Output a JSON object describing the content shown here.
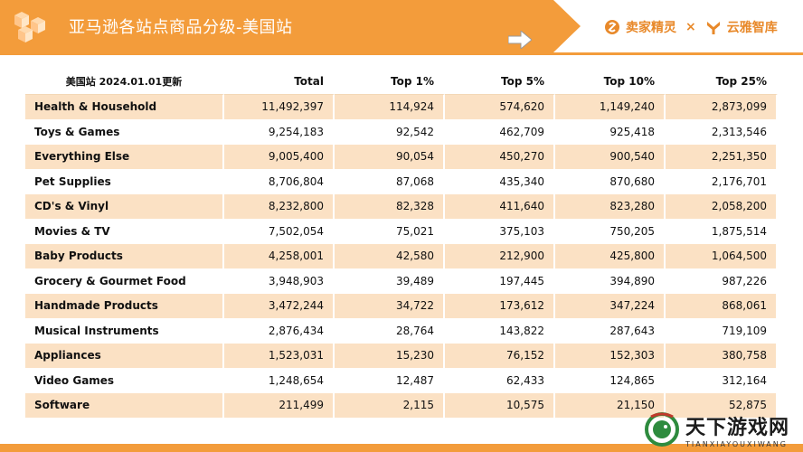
{
  "header": {
    "title": "亚马逊各站点商品分级-美国站",
    "brand_left": "卖家精灵",
    "brand_separator": "×",
    "brand_right": "云雅智库"
  },
  "table": {
    "columns": [
      "美国站 2024.01.01更新",
      "Total",
      "Top 1%",
      "Top 5%",
      "Top 10%",
      "Top 25%"
    ],
    "rows": [
      [
        "Health & Household",
        "11,492,397",
        "114,924",
        "574,620",
        "1,149,240",
        "2,873,099"
      ],
      [
        "Toys & Games",
        "9,254,183",
        "92,542",
        "462,709",
        "925,418",
        "2,313,546"
      ],
      [
        "Everything Else",
        "9,005,400",
        "90,054",
        "450,270",
        "900,540",
        "2,251,350"
      ],
      [
        "Pet Supplies",
        "8,706,804",
        "87,068",
        "435,340",
        "870,680",
        "2,176,701"
      ],
      [
        "CD's & Vinyl",
        "8,232,800",
        "82,328",
        "411,640",
        "823,280",
        "2,058,200"
      ],
      [
        "Movies & TV",
        "7,502,054",
        "75,021",
        "375,103",
        "750,205",
        "1,875,514"
      ],
      [
        "Baby Products",
        "4,258,001",
        "42,580",
        "212,900",
        "425,800",
        "1,064,500"
      ],
      [
        "Grocery & Gourmet Food",
        "3,948,903",
        "39,489",
        "197,445",
        "394,890",
        "987,226"
      ],
      [
        "Handmade Products",
        "3,472,244",
        "34,722",
        "173,612",
        "347,224",
        "868,061"
      ],
      [
        "Musical Instruments",
        "2,876,434",
        "28,764",
        "143,822",
        "287,643",
        "719,109"
      ],
      [
        "Appliances",
        "1,523,031",
        "15,230",
        "76,152",
        "152,303",
        "380,758"
      ],
      [
        "Video Games",
        "1,248,654",
        "12,487",
        "62,433",
        "124,865",
        "312,164"
      ],
      [
        "Software",
        "211,499",
        "2,115",
        "10,575",
        "21,150",
        "52,875"
      ]
    ]
  },
  "watermark": {
    "main": "天下游戏网",
    "sub": "TIANXIAYOUXIWANG"
  },
  "colors": {
    "accent": "#f39c3b",
    "row_tint": "#fbe1c4"
  }
}
